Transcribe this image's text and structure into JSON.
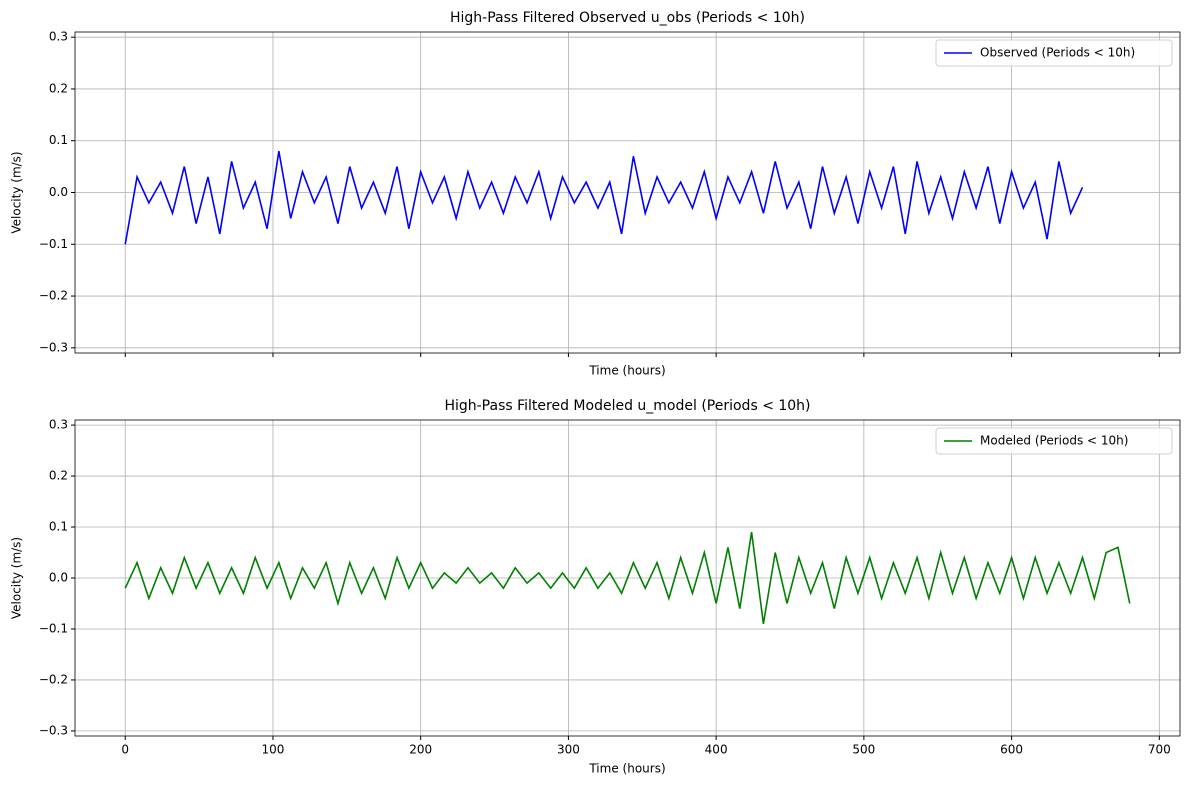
{
  "chart_data": [
    {
      "type": "line",
      "title": "High-Pass Filtered Observed u_obs (Periods < 10h)",
      "xlabel": "Time (hours)",
      "ylabel": "Velocity (m/s)",
      "x": [
        0,
        8,
        16,
        24,
        32,
        40,
        48,
        56,
        64,
        72,
        80,
        88,
        96,
        104,
        112,
        120,
        128,
        136,
        144,
        152,
        160,
        168,
        176,
        184,
        192,
        200,
        208,
        216,
        224,
        232,
        240,
        248,
        256,
        264,
        272,
        280,
        288,
        296,
        304,
        312,
        320,
        328,
        336,
        344,
        352,
        360,
        368,
        376,
        384,
        392,
        400,
        408,
        416,
        424,
        432,
        440,
        448,
        456,
        464,
        472,
        480,
        488,
        496,
        504,
        512,
        520,
        528,
        536,
        544,
        552,
        560,
        568,
        576,
        584,
        592,
        600,
        608,
        616,
        624,
        632,
        640,
        648
      ],
      "series": [
        {
          "name": "Observed (Periods < 10h)",
          "color": "#0000ff",
          "values": [
            -0.1,
            0.03,
            -0.02,
            0.02,
            -0.04,
            0.05,
            -0.06,
            0.03,
            -0.08,
            0.06,
            -0.03,
            0.02,
            -0.07,
            0.08,
            -0.05,
            0.04,
            -0.02,
            0.03,
            -0.06,
            0.05,
            -0.03,
            0.02,
            -0.04,
            0.05,
            -0.07,
            0.04,
            -0.02,
            0.03,
            -0.05,
            0.04,
            -0.03,
            0.02,
            -0.04,
            0.03,
            -0.02,
            0.04,
            -0.05,
            0.03,
            -0.02,
            0.02,
            -0.03,
            0.02,
            -0.08,
            0.07,
            -0.04,
            0.03,
            -0.02,
            0.02,
            -0.03,
            0.04,
            -0.05,
            0.03,
            -0.02,
            0.04,
            -0.04,
            0.06,
            -0.03,
            0.02,
            -0.07,
            0.05,
            -0.04,
            0.03,
            -0.06,
            0.04,
            -0.03,
            0.05,
            -0.08,
            0.06,
            -0.04,
            0.03,
            -0.05,
            0.04,
            -0.03,
            0.05,
            -0.06,
            0.04,
            -0.03,
            0.02,
            -0.09,
            0.06,
            -0.04,
            0.01
          ]
        }
      ],
      "xlim": [
        -34,
        714
      ],
      "ylim": [
        -0.31,
        0.31
      ],
      "xticks": [
        0,
        100,
        200,
        300,
        400,
        500,
        600,
        700
      ],
      "show_xtick_labels": false,
      "yticks": [
        {
          "value": -0.3,
          "label": "−0.3"
        },
        {
          "value": -0.2,
          "label": "−0.2"
        },
        {
          "value": -0.1,
          "label": "−0.1"
        },
        {
          "value": 0,
          "label": "0.0"
        },
        0.1,
        0.2,
        0.3
      ],
      "grid": true,
      "legend": "upper right"
    },
    {
      "type": "line",
      "title": "High-Pass Filtered Modeled u_model (Periods < 10h)",
      "xlabel": "Time (hours)",
      "ylabel": "Velocity (m/s)",
      "x": [
        0,
        8,
        16,
        24,
        32,
        40,
        48,
        56,
        64,
        72,
        80,
        88,
        96,
        104,
        112,
        120,
        128,
        136,
        144,
        152,
        160,
        168,
        176,
        184,
        192,
        200,
        208,
        216,
        224,
        232,
        240,
        248,
        256,
        264,
        272,
        280,
        288,
        296,
        304,
        312,
        320,
        328,
        336,
        344,
        352,
        360,
        368,
        376,
        384,
        392,
        400,
        408,
        416,
        424,
        432,
        440,
        448,
        456,
        464,
        472,
        480,
        488,
        496,
        504,
        512,
        520,
        528,
        536,
        544,
        552,
        560,
        568,
        576,
        584,
        592,
        600,
        608,
        616,
        624,
        632,
        640,
        648,
        656,
        664,
        672,
        680
      ],
      "series": [
        {
          "name": "Modeled (Periods < 10h)",
          "color": "#008000",
          "values": [
            -0.02,
            0.03,
            -0.04,
            0.02,
            -0.03,
            0.04,
            -0.02,
            0.03,
            -0.03,
            0.02,
            -0.03,
            0.04,
            -0.02,
            0.03,
            -0.04,
            0.02,
            -0.02,
            0.03,
            -0.05,
            0.03,
            -0.03,
            0.02,
            -0.04,
            0.04,
            -0.02,
            0.03,
            -0.02,
            0.01,
            -0.01,
            0.02,
            -0.01,
            0.01,
            -0.02,
            0.02,
            -0.01,
            0.01,
            -0.02,
            0.01,
            -0.02,
            0.02,
            -0.02,
            0.01,
            -0.03,
            0.03,
            -0.02,
            0.03,
            -0.04,
            0.04,
            -0.03,
            0.05,
            -0.05,
            0.06,
            -0.06,
            0.09,
            -0.09,
            0.05,
            -0.05,
            0.04,
            -0.03,
            0.03,
            -0.06,
            0.04,
            -0.03,
            0.04,
            -0.04,
            0.03,
            -0.03,
            0.04,
            -0.04,
            0.05,
            -0.03,
            0.04,
            -0.04,
            0.03,
            -0.03,
            0.04,
            -0.04,
            0.04,
            -0.03,
            0.03,
            -0.03,
            0.04,
            -0.04,
            0.05,
            0.06,
            -0.05
          ]
        }
      ],
      "xlim": [
        -34,
        714
      ],
      "ylim": [
        -0.31,
        0.31
      ],
      "xticks": [
        0,
        100,
        200,
        300,
        400,
        500,
        600,
        700
      ],
      "show_xtick_labels": true,
      "yticks": [
        {
          "value": -0.3,
          "label": "−0.3"
        },
        {
          "value": -0.2,
          "label": "−0.2"
        },
        {
          "value": -0.1,
          "label": "−0.1"
        },
        {
          "value": 0,
          "label": "0.0"
        },
        0.1,
        0.2,
        0.3
      ],
      "grid": true,
      "legend": "upper right"
    }
  ]
}
